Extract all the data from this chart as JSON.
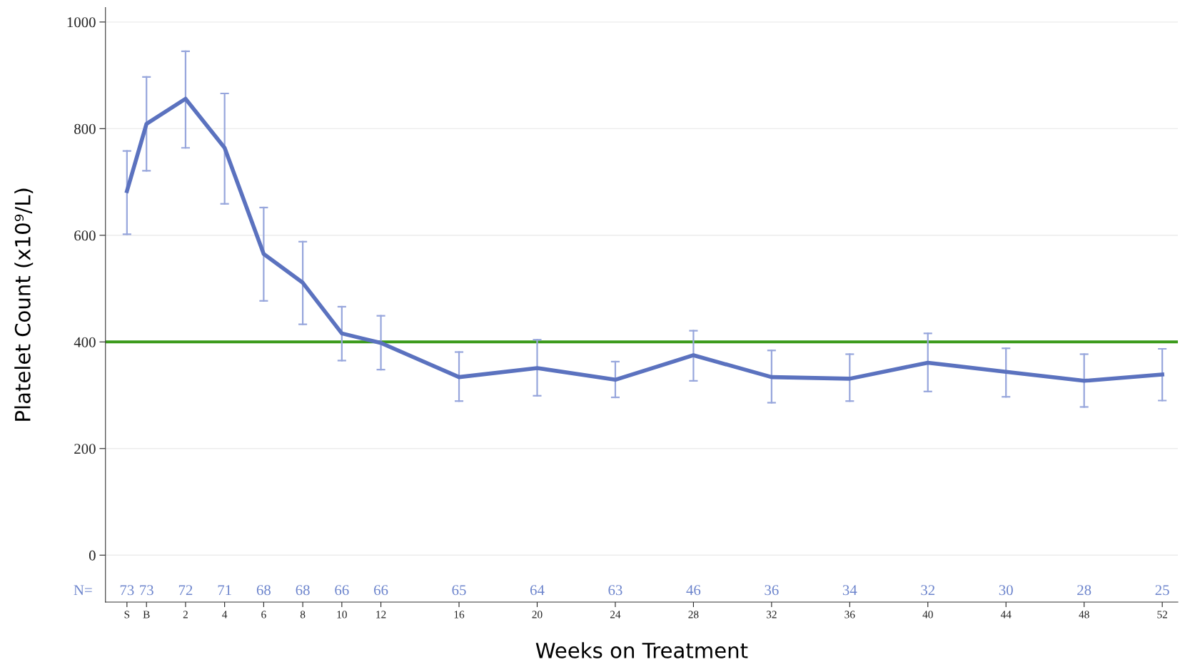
{
  "chart_data": {
    "type": "line",
    "xlabel": "Weeks on Treatment",
    "ylabel": "Platelet Count (x10⁹/L)",
    "x": [
      -1,
      0,
      2,
      4,
      6,
      8,
      10,
      12,
      16,
      20,
      24,
      28,
      32,
      36,
      40,
      44,
      48,
      52
    ],
    "series": [
      {
        "color": "#5b72bf",
        "values": [
          683,
          809,
          856,
          764,
          565,
          511,
          416,
          398,
          334,
          351,
          329,
          375,
          334,
          331,
          361,
          344,
          327,
          339
        ],
        "errors": [
          [
            602,
            758
          ],
          [
            721,
            897
          ],
          [
            764,
            945
          ],
          [
            659,
            866
          ],
          [
            477,
            652
          ],
          [
            433,
            588
          ],
          [
            365,
            466
          ],
          [
            348,
            449
          ],
          [
            289,
            381
          ],
          [
            299,
            404
          ],
          [
            296,
            363
          ],
          [
            327,
            421
          ],
          [
            286,
            384
          ],
          [
            289,
            377
          ],
          [
            307,
            416
          ],
          [
            297,
            388
          ],
          [
            278,
            377
          ],
          [
            290,
            387
          ]
        ]
      }
    ],
    "xlim": [
      -2.1,
      52.8
    ],
    "ylim": [
      -88,
      1027
    ],
    "xticks": [
      {
        "value": -1,
        "label": "S"
      },
      {
        "value": 0,
        "label": "B"
      },
      2,
      4,
      6,
      8,
      10,
      12,
      16,
      20,
      24,
      28,
      32,
      36,
      40,
      44,
      48,
      52
    ],
    "yticks": [
      0,
      200,
      400,
      600,
      800,
      1000
    ],
    "grid": "y",
    "marker": "none",
    "line_style": "solid",
    "ref_lines": [
      {
        "axis": "y",
        "value": 400,
        "color": "#3a9a1a"
      }
    ],
    "annotations": [
      "N=",
      "73",
      "73",
      "72",
      "71",
      "68",
      "68",
      "66",
      "66",
      "65",
      "64",
      "63",
      "46",
      "36",
      "34",
      "32",
      "30",
      "28",
      "25"
    ]
  }
}
